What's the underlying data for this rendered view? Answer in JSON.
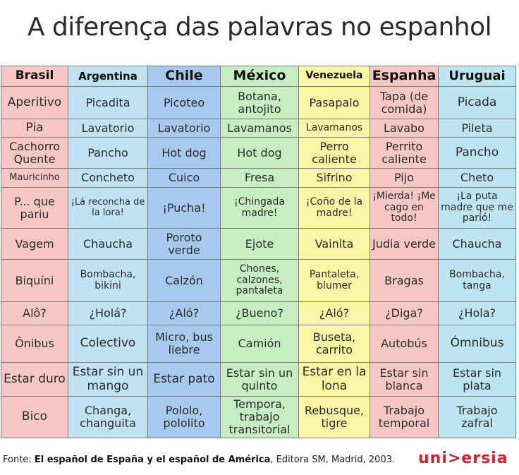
{
  "title": "A diferença das palavras no espanhol",
  "headers": [
    "Brasil",
    "Argentina",
    "Chile",
    "México",
    "Venezuela",
    "Espanha",
    "Uruguai"
  ],
  "rows": [
    [
      "Aperitivo",
      "Picadita",
      "Picoteo",
      "Botana, antojito",
      "Pasapalo",
      "Tapa (de comida)",
      "Picada"
    ],
    [
      "Pia",
      "Lavatorio",
      "Lavatorio",
      "Lavamanos",
      "Lavamanos",
      "Lavabo",
      "Pileta"
    ],
    [
      "Cachorro Quente",
      "Pancho",
      "Hot dog",
      "Hot dog",
      "Perro caliente",
      "Perrito caliente",
      "Pancho"
    ],
    [
      "Mauricinho",
      "Concheto",
      "Cuico",
      "Fresa",
      "Sifrino",
      "Pijo",
      "Cheto"
    ],
    [
      "P... que pariu",
      "¡Lá reconcha de la lora!",
      "¡Pucha!",
      "¡Chingada madre!",
      "¡Coño de la madre!",
      "¡Mierda! ¡Me cago en todo!",
      "¡La puta madre que me parió!"
    ],
    [
      "Vagem",
      "Chaucha",
      "Poroto verde",
      "Ejote",
      "Vainita",
      "Judia verde",
      "Chaucha"
    ],
    [
      "Biquíni",
      "Bombacha, bikini",
      "Calzón",
      "Chones, calzones, pantaleta",
      "Pantaleta, blumer",
      "Bragas",
      "Bombacha, tanga"
    ],
    [
      "Alô?",
      "¿Holá?",
      "¿Aló?",
      "¿Bueno?",
      "¿Aló?",
      "¿Diga?",
      "¿Hola?"
    ],
    [
      "Ônibus",
      "Colectivo",
      "Micro, bus liebre",
      "Camión",
      "Buseta, carrito",
      "Autobús",
      "Ómnibus"
    ],
    [
      "Estar duro",
      "Estar sin un mango",
      "Estar pato",
      "Estar sin un quinto",
      "Estar en la lona",
      "Estar sin blanca",
      "Estar sin plata"
    ],
    [
      "Bico",
      "Changa, changuita",
      "Pololo, pololito",
      "Tempora, trabajo transitorial",
      "Rebusque, tigre",
      "Trabajo temporal",
      "Trabajo zafral"
    ]
  ],
  "footer": {
    "prefix": "Fonte: ",
    "source": "El español de España y el español de América",
    "suffix": ", Editora SM, Madrid, 2003."
  },
  "logo": "uni>ersia",
  "colors": {
    "brasil": "#f7c7c4",
    "argentina": "#bfe3f3",
    "chile": "#a7c9ee",
    "mexico": "#c7eec2",
    "venezuela": "#fbf6a6",
    "espanha": "#f7c8c3",
    "uruguai": "#bde5f1",
    "logo": "#d8202a"
  }
}
